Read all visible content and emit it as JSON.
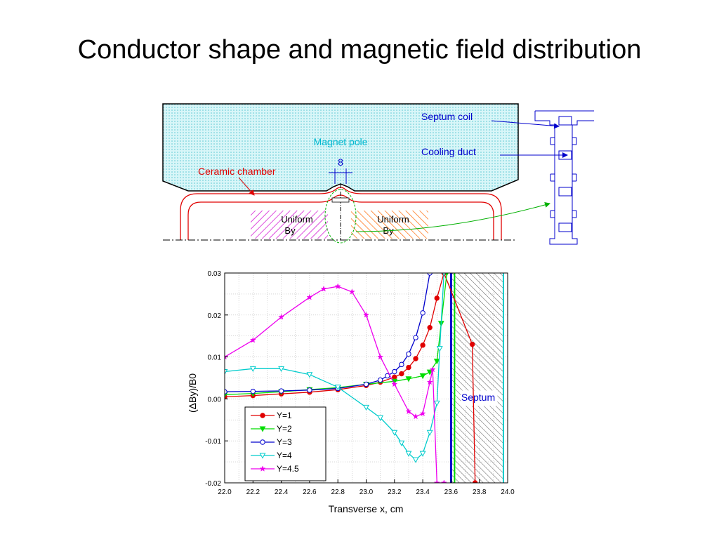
{
  "slide": {
    "title": "Conductor shape and magnetic field distribution"
  },
  "diagram": {
    "labels": {
      "magnet_pole": "Magnet  pole",
      "ceramic_chamber": "Ceramic  chamber",
      "gap_width": "8",
      "uniform_left": "Uniform",
      "uniform_right": "Uniform",
      "by_left": "By",
      "by_right": "By",
      "septum_coil": "Septum coil",
      "cooling_duct": "Cooling duct"
    },
    "colors": {
      "pole_fill": "#c8f0f4",
      "chamber": "#e00000",
      "uniform_left": "#d000d0",
      "uniform_right": "#ff6600",
      "arrows": "#0000cc",
      "link": "#00b000"
    }
  },
  "chart_data": {
    "type": "line",
    "xlabel": "Transverse x, cm",
    "ylabel": "(ΔBy)/B0",
    "xlim": [
      22.0,
      24.0
    ],
    "ylim": [
      -0.02,
      0.03
    ],
    "xticks": [
      "22.0",
      "22.2",
      "22.4",
      "22.6",
      "22.8",
      "23.0",
      "23.2",
      "23.4",
      "23.6",
      "23.8",
      "24.0"
    ],
    "yticks": [
      "-0.02",
      "-0.01",
      "0.00",
      "0.01",
      "0.02",
      "0.03"
    ],
    "grid": true,
    "legend": "bottom-left",
    "annotation": "Septum",
    "septum_region": [
      23.6,
      23.97
    ],
    "series": [
      {
        "name": "Y=1",
        "color": "#e00000",
        "marker": "filled-circle",
        "x": [
          22.0,
          22.2,
          22.4,
          22.6,
          22.8,
          23.0,
          23.1,
          23.2,
          23.25,
          23.3,
          23.35,
          23.4,
          23.45,
          23.5,
          23.55,
          23.75,
          23.77
        ],
        "y": [
          0.0005,
          0.0008,
          0.0012,
          0.0016,
          0.0022,
          0.0032,
          0.004,
          0.0052,
          0.006,
          0.0075,
          0.0096,
          0.0128,
          0.017,
          0.024,
          0.03,
          0.013,
          -0.02
        ]
      },
      {
        "name": "Y=2",
        "color": "#00dd00",
        "marker": "filled-triangle-down",
        "x": [
          22.0,
          22.2,
          22.4,
          22.6,
          22.8,
          23.0,
          23.2,
          23.3,
          23.4,
          23.45,
          23.5,
          23.53,
          23.57
        ],
        "y": [
          0.001,
          0.0013,
          0.0017,
          0.0022,
          0.0027,
          0.0035,
          0.0042,
          0.0048,
          0.0055,
          0.0064,
          0.009,
          0.018,
          0.03
        ]
      },
      {
        "name": "Y=3",
        "color": "#0000cc",
        "marker": "open-circle",
        "x": [
          22.0,
          22.2,
          22.4,
          22.6,
          22.8,
          23.0,
          23.1,
          23.15,
          23.2,
          23.25,
          23.3,
          23.35,
          23.4,
          23.45
        ],
        "y": [
          0.0017,
          0.0018,
          0.0019,
          0.0021,
          0.0025,
          0.0035,
          0.0045,
          0.0055,
          0.0065,
          0.0082,
          0.0107,
          0.0146,
          0.0205,
          0.03
        ]
      },
      {
        "name": "Y=4",
        "color": "#00cccc",
        "marker": "open-triangle-down",
        "x": [
          22.0,
          22.2,
          22.4,
          22.6,
          22.8,
          23.0,
          23.1,
          23.2,
          23.25,
          23.3,
          23.35,
          23.4,
          23.45,
          23.5,
          23.52,
          23.55
        ],
        "y": [
          0.0065,
          0.0072,
          0.0072,
          0.0058,
          0.0028,
          -0.002,
          -0.0045,
          -0.008,
          -0.0105,
          -0.013,
          -0.0145,
          -0.013,
          -0.008,
          -0.001,
          0.012,
          0.03
        ]
      },
      {
        "name": "Y=4.5",
        "color": "#ee00ee",
        "marker": "star",
        "x": [
          22.0,
          22.2,
          22.4,
          22.6,
          22.7,
          22.8,
          22.9,
          23.0,
          23.1,
          23.2,
          23.3,
          23.35,
          23.4,
          23.45,
          23.47,
          23.5,
          23.55
        ],
        "y": [
          0.01,
          0.014,
          0.0195,
          0.0242,
          0.0262,
          0.0268,
          0.0255,
          0.02,
          0.01,
          0.0035,
          -0.003,
          -0.0042,
          -0.0035,
          0.004,
          0.007,
          -0.02,
          -0.02
        ]
      }
    ]
  }
}
